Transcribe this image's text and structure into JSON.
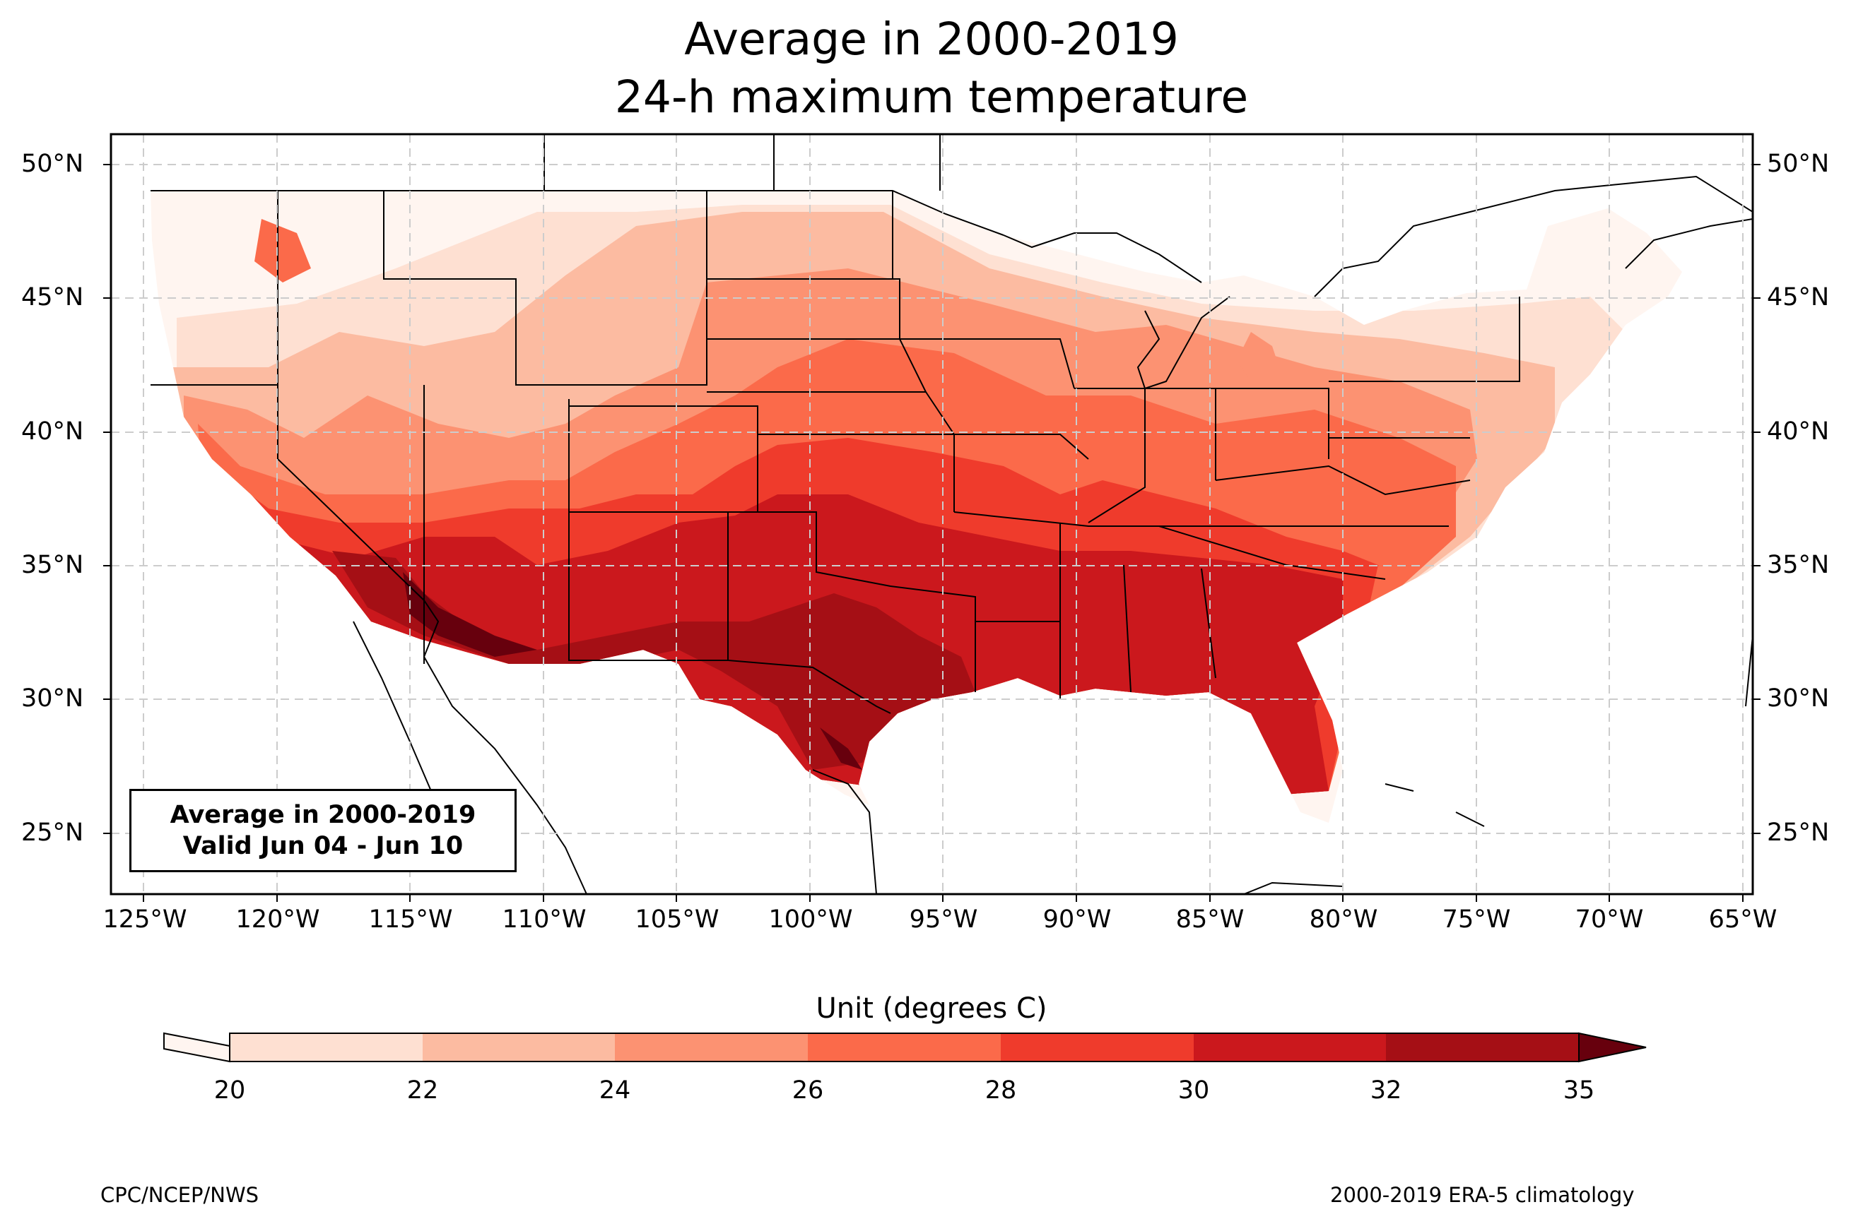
{
  "title": {
    "line1": "Average in 2000-2019",
    "line2": "24-h maximum temperature"
  },
  "map": {
    "region": "CONUS",
    "projection": "PlateCarree",
    "lon_range": [
      -126.5,
      -64.9
    ],
    "lat_range": [
      22.8,
      51.3
    ],
    "lat_ticks": [
      "50°N",
      "45°N",
      "40°N",
      "35°N",
      "30°N",
      "25°N"
    ],
    "lon_ticks": [
      "125°W",
      "120°W",
      "115°W",
      "110°W",
      "105°W",
      "100°W",
      "95°W",
      "90°W",
      "85°W",
      "80°W",
      "75°W",
      "70°W",
      "65°W"
    ],
    "gridlines": true
  },
  "infobox": {
    "line1": "Average in 2000-2019",
    "line2": "Valid Jun 04 - Jun 10"
  },
  "colorbar": {
    "label": "Unit (degrees C)",
    "levels": [
      "20",
      "22",
      "24",
      "26",
      "28",
      "30",
      "32",
      "35"
    ],
    "colors": [
      "#fff5f0",
      "#fee0d2",
      "#fcbba1",
      "#fc9272",
      "#fb6a4a",
      "#ef3b2c",
      "#cb181d",
      "#a50f15",
      "#67000d"
    ],
    "extend": "both"
  },
  "footer": {
    "left": "CPC/NCEP/NWS",
    "right": "2000-2019 ERA-5 climatology"
  }
}
